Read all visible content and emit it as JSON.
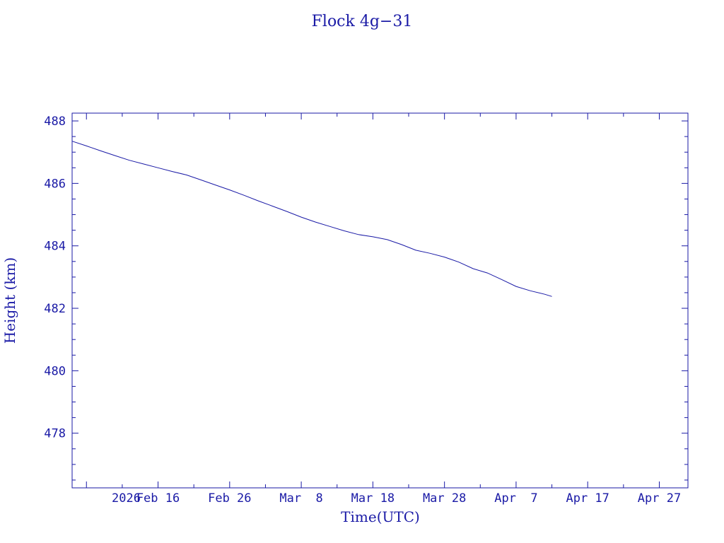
{
  "chart_data": {
    "type": "line",
    "title": "Flock 4g−31",
    "xlabel": "Time(UTC)",
    "ylabel": "Height (km)",
    "color": "#1a1aa6",
    "year_label": "2026",
    "xlim": [
      "2026-02-04",
      "2026-05-01"
    ],
    "ylim": [
      476.25,
      488.25
    ],
    "x_ticks": [
      {
        "date": "2026-02-16",
        "label": "Feb 16"
      },
      {
        "date": "2026-02-26",
        "label": "Feb 26"
      },
      {
        "date": "2026-03-08",
        "label": "Mar  8"
      },
      {
        "date": "2026-03-18",
        "label": "Mar 18"
      },
      {
        "date": "2026-03-28",
        "label": "Mar 28"
      },
      {
        "date": "2026-04-07",
        "label": "Apr  7"
      },
      {
        "date": "2026-04-17",
        "label": "Apr 17"
      },
      {
        "date": "2026-04-27",
        "label": "Apr 27"
      }
    ],
    "y_ticks": [
      478,
      480,
      482,
      484,
      486,
      488
    ],
    "series": [
      {
        "x": [
          "2026-02-04",
          "2026-02-06",
          "2026-02-08",
          "2026-02-10",
          "2026-02-12",
          "2026-02-14",
          "2026-02-16",
          "2026-02-18",
          "2026-02-20",
          "2026-02-22",
          "2026-02-24",
          "2026-02-26",
          "2026-02-28",
          "2026-03-02",
          "2026-03-04",
          "2026-03-06",
          "2026-03-08",
          "2026-03-10",
          "2026-03-12",
          "2026-03-14",
          "2026-03-16",
          "2026-03-18",
          "2026-03-20",
          "2026-03-22",
          "2026-03-24",
          "2026-03-26",
          "2026-03-28",
          "2026-03-30",
          "2026-04-01",
          "2026-04-03",
          "2026-04-05",
          "2026-04-07",
          "2026-04-09",
          "2026-04-11",
          "2026-04-12"
        ],
        "y": [
          487.35,
          487.2,
          487.04,
          486.89,
          486.74,
          486.62,
          486.5,
          486.38,
          486.27,
          486.11,
          485.95,
          485.79,
          485.62,
          485.44,
          485.27,
          485.1,
          484.92,
          484.76,
          484.62,
          484.48,
          484.36,
          484.29,
          484.2,
          484.04,
          483.86,
          483.76,
          483.64,
          483.48,
          483.27,
          483.13,
          482.92,
          482.7,
          482.56,
          482.45,
          482.38
        ]
      }
    ],
    "grid": false
  }
}
